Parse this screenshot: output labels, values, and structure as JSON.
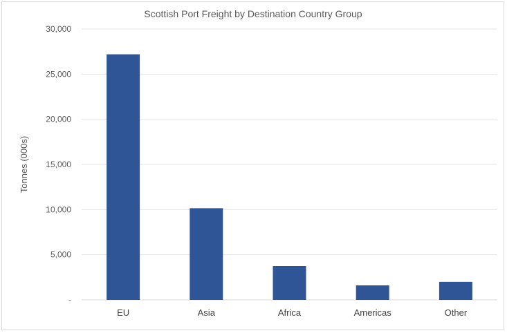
{
  "chart_data": {
    "type": "bar",
    "title": "Scottish Port Freight by Destination Country Group",
    "xlabel": "",
    "ylabel": "Tonnes (000s)",
    "categories": [
      "EU",
      "Asia",
      "Africa",
      "Americas",
      "Other"
    ],
    "values": [
      27200,
      10150,
      3750,
      1600,
      2000
    ],
    "ylim": [
      0,
      30000
    ],
    "yticks": [
      0,
      5000,
      10000,
      15000,
      20000,
      25000,
      30000
    ],
    "ytick_labels": [
      "-",
      "5,000",
      "10,000",
      "15,000",
      "20,000",
      "25,000",
      "30,000"
    ],
    "grid": true,
    "legend": "none",
    "colors": {
      "bar": "#2f5597"
    }
  }
}
